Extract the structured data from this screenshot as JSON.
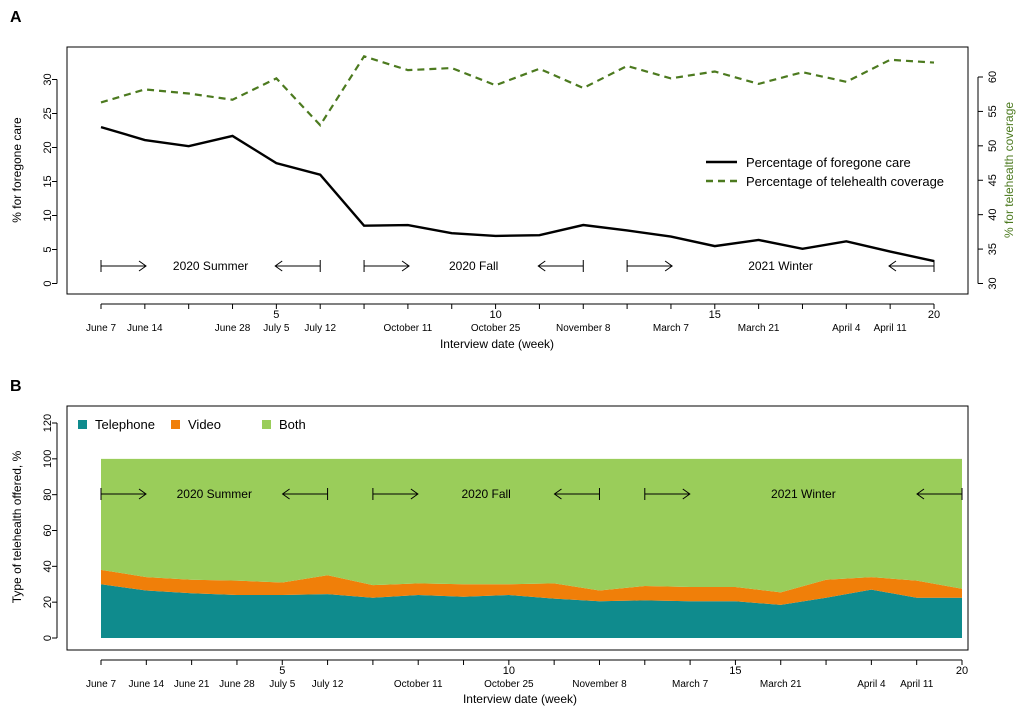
{
  "colors": {
    "foregone": "#000000",
    "telehealth": "#4c7a1f",
    "telephone": "#0f8b8d",
    "video": "#f07f09",
    "both": "#9acd5a"
  },
  "chart_data": [
    {
      "panel": "A",
      "type": "line",
      "xlabel": "Interview date (week)",
      "ylabel_left": "% for foregone care",
      "ylabel_right": "% for telehealth coverage",
      "x": [
        1,
        2,
        3,
        4,
        5,
        6,
        7,
        8,
        9,
        10,
        11,
        12,
        13,
        14,
        15,
        16,
        17,
        18,
        19,
        20
      ],
      "xlim": [
        1,
        20
      ],
      "x_ticks": [
        5,
        10,
        15,
        20
      ],
      "date_labels": [
        {
          "week": 1,
          "label": "June 7"
        },
        {
          "week": 2,
          "label": "June 14"
        },
        {
          "week": 4,
          "label": "June 28"
        },
        {
          "week": 5,
          "label": "July 5"
        },
        {
          "week": 6,
          "label": "July 12"
        },
        {
          "week": 8,
          "label": "October 11"
        },
        {
          "week": 10,
          "label": "October 25"
        },
        {
          "week": 12,
          "label": "November 8"
        },
        {
          "week": 14,
          "label": "March 7"
        },
        {
          "week": 16,
          "label": "March 21"
        },
        {
          "week": 18,
          "label": "April 4"
        },
        {
          "week": 19,
          "label": "April 11"
        }
      ],
      "ylim_left": [
        0,
        33
      ],
      "ylim_right": [
        30,
        64
      ],
      "yticks_left": [
        0,
        5,
        10,
        15,
        20,
        25,
        30
      ],
      "yticks_right": [
        30,
        35,
        40,
        45,
        50,
        55,
        60
      ],
      "series": [
        {
          "name": "Percentage of foregone care",
          "axis": "left",
          "style": "solid",
          "values": [
            23.0,
            21.1,
            20.2,
            21.7,
            17.7,
            16.0,
            8.5,
            8.6,
            7.4,
            7.0,
            7.1,
            8.6,
            7.8,
            6.9,
            5.5,
            6.4,
            5.1,
            6.2,
            4.7,
            3.3
          ]
        },
        {
          "name": "Percentage of telehealth coverage",
          "axis": "right",
          "style": "dashed",
          "values": [
            56.3,
            58.2,
            57.6,
            56.7,
            59.8,
            53.0,
            63.0,
            61.0,
            61.3,
            58.8,
            61.2,
            58.4,
            61.6,
            59.8,
            60.8,
            59.0,
            60.7,
            59.3,
            62.5,
            62.1
          ]
        }
      ],
      "legend": "right",
      "seasons": [
        {
          "label": "2020 Summer",
          "from": 1,
          "to": 6
        },
        {
          "label": "2020 Fall",
          "from": 7,
          "to": 12
        },
        {
          "label": "2021 Winter",
          "from": 13,
          "to": 20
        }
      ]
    },
    {
      "panel": "B",
      "type": "area",
      "stacked": true,
      "xlabel": "Interview date (week)",
      "ylabel": "Type of telehealth offered, %",
      "x": [
        1,
        2,
        3,
        4,
        5,
        6,
        7,
        8,
        9,
        10,
        11,
        12,
        13,
        14,
        15,
        16,
        17,
        18,
        19,
        20
      ],
      "xlim": [
        1,
        20
      ],
      "x_ticks": [
        5,
        10,
        15,
        20
      ],
      "date_labels": [
        {
          "week": 1,
          "label": "June 7"
        },
        {
          "week": 2,
          "label": "June 14"
        },
        {
          "week": 3,
          "label": "June 21"
        },
        {
          "week": 4,
          "label": "June 28"
        },
        {
          "week": 5,
          "label": "July 5"
        },
        {
          "week": 6,
          "label": "July 12"
        },
        {
          "week": 8,
          "label": "October 11"
        },
        {
          "week": 10,
          "label": "October 25"
        },
        {
          "week": 12,
          "label": "November 8"
        },
        {
          "week": 14,
          "label": "March 7"
        },
        {
          "week": 16,
          "label": "March 21"
        },
        {
          "week": 18,
          "label": "April 4"
        },
        {
          "week": 19,
          "label": "April 11"
        }
      ],
      "ylim": [
        0,
        120
      ],
      "yticks": [
        0,
        20,
        40,
        60,
        80,
        100,
        120
      ],
      "series": [
        {
          "name": "Telephone",
          "values": [
            30,
            26.5,
            25,
            24,
            24,
            24.5,
            22.5,
            24,
            23,
            24,
            22,
            20.5,
            21,
            20.5,
            20.5,
            18.5,
            22.5,
            27,
            22.5,
            22.5
          ]
        },
        {
          "name": "Video",
          "values": [
            8,
            7.5,
            7.5,
            8,
            7,
            10.5,
            7,
            6.5,
            7,
            6,
            8.5,
            6,
            8,
            8,
            8,
            7,
            10,
            7,
            9.5,
            5
          ]
        },
        {
          "name": "Both",
          "values": [
            62,
            66,
            67.5,
            68,
            69,
            65,
            70.5,
            69.5,
            70,
            70,
            69.5,
            73.5,
            71,
            71.5,
            71.5,
            74.5,
            67.5,
            66,
            68,
            72.5
          ]
        }
      ],
      "legend": "top-left",
      "seasons": [
        {
          "label": "2020 Summer",
          "from": 1,
          "to": 6
        },
        {
          "label": "2020 Fall",
          "from": 7,
          "to": 12
        },
        {
          "label": "2021 Winter",
          "from": 13,
          "to": 20
        }
      ]
    }
  ]
}
